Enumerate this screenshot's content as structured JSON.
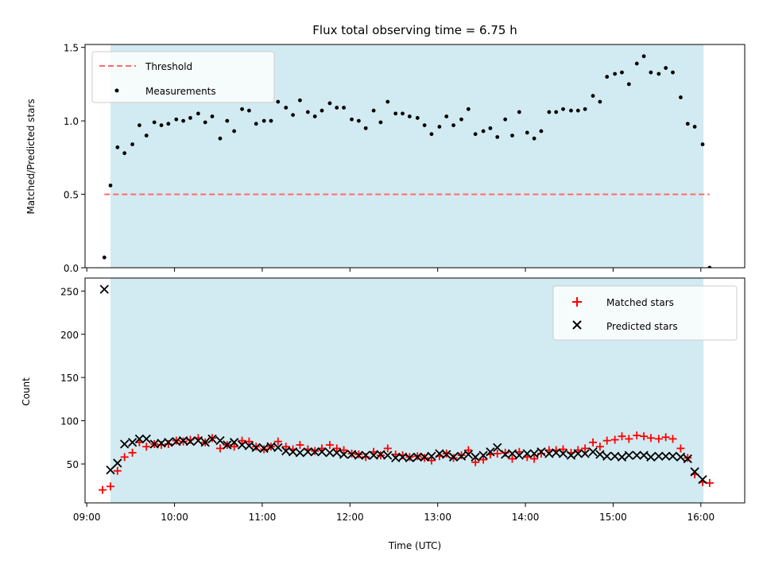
{
  "chart_data": [
    {
      "type": "scatter",
      "title": "Flux total observing time = 6.75 h",
      "xlabel": "",
      "ylabel": "Matched/Predicted stars",
      "xlim": [
        8.98,
        16.5
      ],
      "ylim": [
        0.0,
        1.52
      ],
      "yticks": [
        0.0,
        0.5,
        1.0,
        1.5
      ],
      "ytick_labels": [
        "0.0",
        "0.5",
        "1.0",
        "1.5"
      ],
      "shaded_interval": {
        "start": 9.27,
        "end": 16.03,
        "color": "#add8e6"
      },
      "legend": {
        "placement": "upper-left",
        "entries": [
          "Threshold",
          "Measurements"
        ]
      },
      "threshold": {
        "name": "Threshold",
        "value": 0.5,
        "x_range": [
          9.2,
          16.1
        ],
        "color": "#ff6b6b",
        "style": "dashed"
      },
      "series": [
        {
          "name": "Measurements",
          "color": "#000000",
          "marker": "dot",
          "x": [
            9.2,
            9.27,
            9.35,
            9.43,
            9.52,
            9.6,
            9.68,
            9.77,
            9.85,
            9.93,
            10.02,
            10.1,
            10.18,
            10.27,
            10.35,
            10.43,
            10.52,
            10.6,
            10.68,
            10.77,
            10.85,
            10.93,
            11.02,
            11.1,
            11.18,
            11.27,
            11.35,
            11.43,
            11.52,
            11.6,
            11.68,
            11.77,
            11.85,
            11.93,
            12.02,
            12.1,
            12.18,
            12.27,
            12.35,
            12.43,
            12.52,
            12.6,
            12.68,
            12.77,
            12.85,
            12.93,
            13.02,
            13.1,
            13.18,
            13.27,
            13.35,
            13.43,
            13.52,
            13.6,
            13.68,
            13.77,
            13.85,
            13.93,
            14.02,
            14.1,
            14.18,
            14.27,
            14.35,
            14.43,
            14.52,
            14.6,
            14.68,
            14.77,
            14.85,
            14.93,
            15.02,
            15.1,
            15.18,
            15.27,
            15.35,
            15.43,
            15.52,
            15.6,
            15.68,
            15.77,
            15.85,
            15.93,
            16.02,
            16.1
          ],
          "y": [
            0.07,
            0.56,
            0.82,
            0.78,
            0.84,
            0.97,
            0.9,
            0.99,
            0.97,
            0.98,
            1.01,
            1.0,
            1.02,
            1.05,
            0.99,
            1.03,
            0.88,
            1.0,
            0.93,
            1.08,
            1.07,
            0.98,
            1.0,
            1.0,
            1.13,
            1.09,
            1.04,
            1.14,
            1.06,
            1.03,
            1.07,
            1.12,
            1.09,
            1.09,
            1.01,
            1.0,
            0.95,
            1.07,
            0.99,
            1.13,
            1.05,
            1.05,
            1.03,
            1.02,
            0.97,
            0.91,
            0.96,
            1.03,
            0.97,
            1.01,
            1.08,
            0.91,
            0.93,
            0.95,
            0.89,
            1.01,
            0.9,
            1.06,
            0.92,
            0.88,
            0.93,
            1.06,
            1.06,
            1.08,
            1.07,
            1.07,
            1.08,
            1.17,
            1.13,
            1.3,
            1.32,
            1.33,
            1.25,
            1.39,
            1.44,
            1.33,
            1.32,
            1.36,
            1.33,
            1.16,
            0.98,
            0.96,
            0.84,
            0.0
          ]
        }
      ]
    },
    {
      "type": "scatter",
      "title": "",
      "xlabel": "Time (UTC)",
      "ylabel": "Count",
      "xlim": [
        8.98,
        16.5
      ],
      "ylim": [
        5,
        265
      ],
      "yticks": [
        50,
        100,
        150,
        200,
        250
      ],
      "ytick_labels": [
        "50",
        "100",
        "150",
        "200",
        "250"
      ],
      "xticks": [
        9,
        10,
        11,
        12,
        13,
        14,
        15,
        16
      ],
      "xtick_labels": [
        "09:00",
        "10:00",
        "11:00",
        "12:00",
        "13:00",
        "14:00",
        "15:00",
        "16:00"
      ],
      "shaded_interval": {
        "start": 9.27,
        "end": 16.03,
        "color": "#add8e6"
      },
      "legend": {
        "placement": "upper-right",
        "entries": [
          "Matched stars",
          "Predicted stars"
        ]
      },
      "series": [
        {
          "name": "Matched stars",
          "color": "#ff0000",
          "marker": "plus",
          "x": [
            9.18,
            9.27,
            9.35,
            9.43,
            9.52,
            9.6,
            9.68,
            9.77,
            9.85,
            9.93,
            10.02,
            10.1,
            10.18,
            10.27,
            10.35,
            10.43,
            10.52,
            10.6,
            10.68,
            10.77,
            10.85,
            10.93,
            11.02,
            11.1,
            11.18,
            11.27,
            11.35,
            11.43,
            11.52,
            11.6,
            11.68,
            11.77,
            11.85,
            11.93,
            12.02,
            12.1,
            12.18,
            12.27,
            12.35,
            12.43,
            12.52,
            12.6,
            12.68,
            12.77,
            12.85,
            12.93,
            13.02,
            13.1,
            13.18,
            13.27,
            13.35,
            13.43,
            13.52,
            13.6,
            13.68,
            13.77,
            13.85,
            13.93,
            14.02,
            14.1,
            14.18,
            14.27,
            14.35,
            14.43,
            14.52,
            14.6,
            14.68,
            14.77,
            14.85,
            14.93,
            15.02,
            15.1,
            15.18,
            15.27,
            15.35,
            15.43,
            15.52,
            15.6,
            15.68,
            15.77,
            15.85,
            15.93,
            16.02,
            16.1
          ],
          "y": [
            20,
            24,
            42,
            58,
            63,
            75,
            70,
            73,
            72,
            73,
            77,
            76,
            78,
            80,
            75,
            80,
            68,
            72,
            70,
            77,
            76,
            70,
            67,
            70,
            76,
            70,
            67,
            72,
            67,
            65,
            68,
            72,
            68,
            66,
            62,
            61,
            58,
            64,
            60,
            68,
            61,
            60,
            58,
            59,
            57,
            54,
            59,
            62,
            57,
            60,
            66,
            52,
            55,
            61,
            62,
            63,
            56,
            64,
            58,
            56,
            62,
            66,
            66,
            67,
            63,
            66,
            68,
            75,
            70,
            77,
            78,
            82,
            79,
            83,
            82,
            80,
            79,
            81,
            79,
            68,
            57,
            38,
            29,
            28
          ]
        },
        {
          "name": "Predicted stars",
          "color": "#000000",
          "marker": "x",
          "x": [
            9.2,
            9.27,
            9.35,
            9.43,
            9.52,
            9.6,
            9.68,
            9.77,
            9.85,
            9.93,
            10.02,
            10.1,
            10.18,
            10.27,
            10.35,
            10.43,
            10.52,
            10.6,
            10.68,
            10.77,
            10.85,
            10.93,
            11.02,
            11.1,
            11.18,
            11.27,
            11.35,
            11.43,
            11.52,
            11.6,
            11.68,
            11.77,
            11.85,
            11.93,
            12.02,
            12.1,
            12.18,
            12.27,
            12.35,
            12.43,
            12.52,
            12.6,
            12.68,
            12.77,
            12.85,
            12.93,
            13.02,
            13.1,
            13.18,
            13.27,
            13.35,
            13.43,
            13.52,
            13.6,
            13.68,
            13.77,
            13.85,
            13.93,
            14.02,
            14.1,
            14.18,
            14.27,
            14.35,
            14.43,
            14.52,
            14.6,
            14.68,
            14.77,
            14.85,
            14.93,
            15.02,
            15.1,
            15.18,
            15.27,
            15.35,
            15.43,
            15.52,
            15.6,
            15.68,
            15.77,
            15.85,
            15.93,
            16.02
          ],
          "y": [
            252,
            43,
            51,
            73,
            75,
            79,
            79,
            73,
            74,
            75,
            76,
            77,
            76,
            77,
            75,
            79,
            77,
            72,
            75,
            72,
            71,
            69,
            68,
            70,
            69,
            65,
            64,
            63,
            64,
            64,
            64,
            63,
            63,
            61,
            61,
            60,
            60,
            60,
            61,
            60,
            57,
            58,
            57,
            58,
            58,
            59,
            62,
            61,
            58,
            59,
            61,
            58,
            60,
            64,
            69,
            61,
            62,
            60,
            62,
            62,
            64,
            62,
            63,
            62,
            60,
            62,
            62,
            64,
            61,
            59,
            59,
            58,
            60,
            60,
            60,
            58,
            59,
            59,
            59,
            58,
            56,
            41,
            32
          ]
        }
      ]
    }
  ]
}
